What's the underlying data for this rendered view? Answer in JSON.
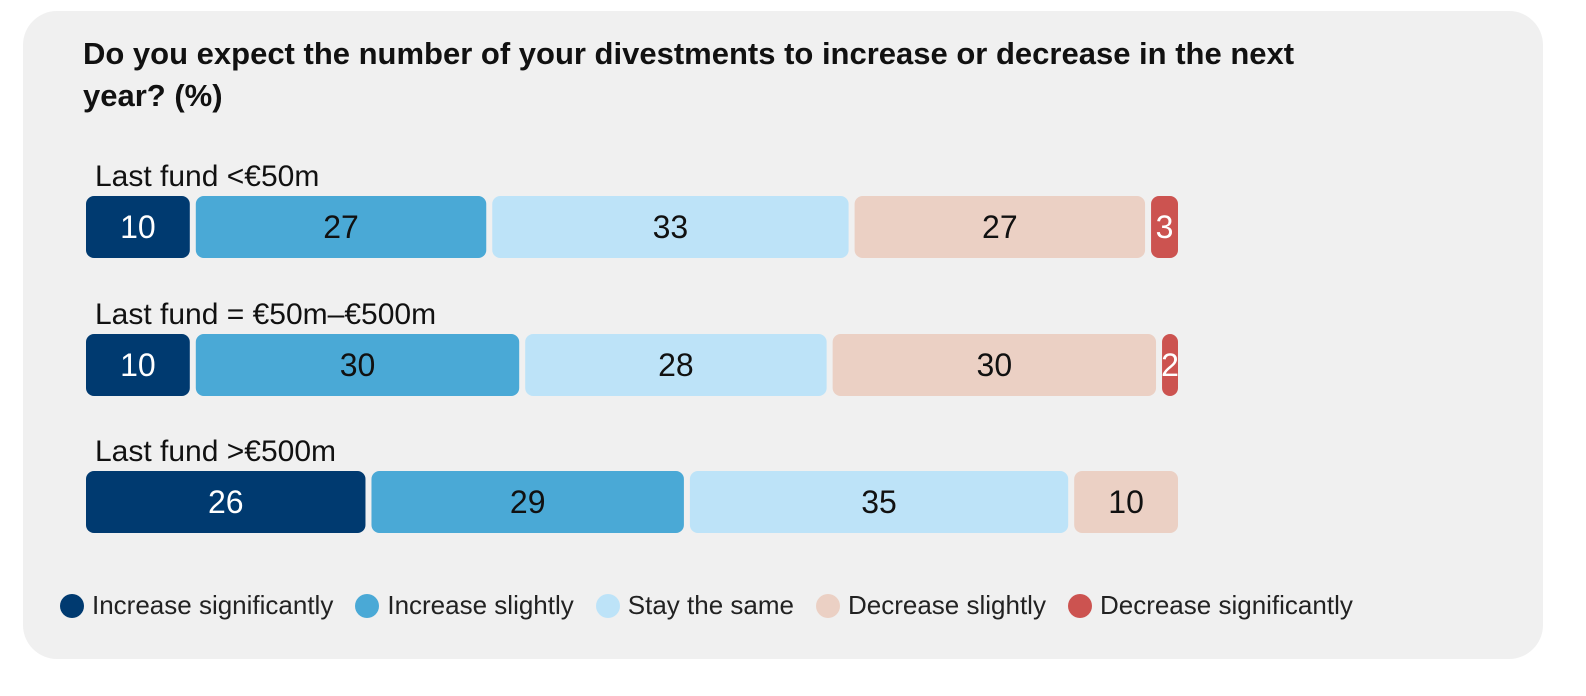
{
  "chart_data": {
    "type": "bar",
    "orientation": "horizontal",
    "stacked": true,
    "title": "Do you expect the number of your divestments to increase or decrease in the next year? (%)",
    "categories": [
      "Last fund <€50m",
      "Last fund = €50m–€500m",
      "Last fund >€500m"
    ],
    "series": [
      {
        "name": "Increase significantly",
        "color": "#003a70",
        "text_color": "#ffffff",
        "values": [
          10,
          10,
          26
        ]
      },
      {
        "name": "Increase slightly",
        "color": "#4aa9d6",
        "text_color": "#111111",
        "values": [
          27,
          30,
          29
        ]
      },
      {
        "name": "Stay the same",
        "color": "#bde3f8",
        "text_color": "#111111",
        "values": [
          33,
          28,
          35
        ]
      },
      {
        "name": "Decrease slightly",
        "color": "#ebd0c4",
        "text_color": "#111111",
        "values": [
          27,
          30,
          10
        ]
      },
      {
        "name": "Decrease significantly",
        "color": "#cc5350",
        "text_color": "#ffffff",
        "values": [
          3,
          2,
          0
        ]
      }
    ],
    "xlim": [
      0,
      100
    ],
    "legend_position": "bottom",
    "grid": false
  }
}
